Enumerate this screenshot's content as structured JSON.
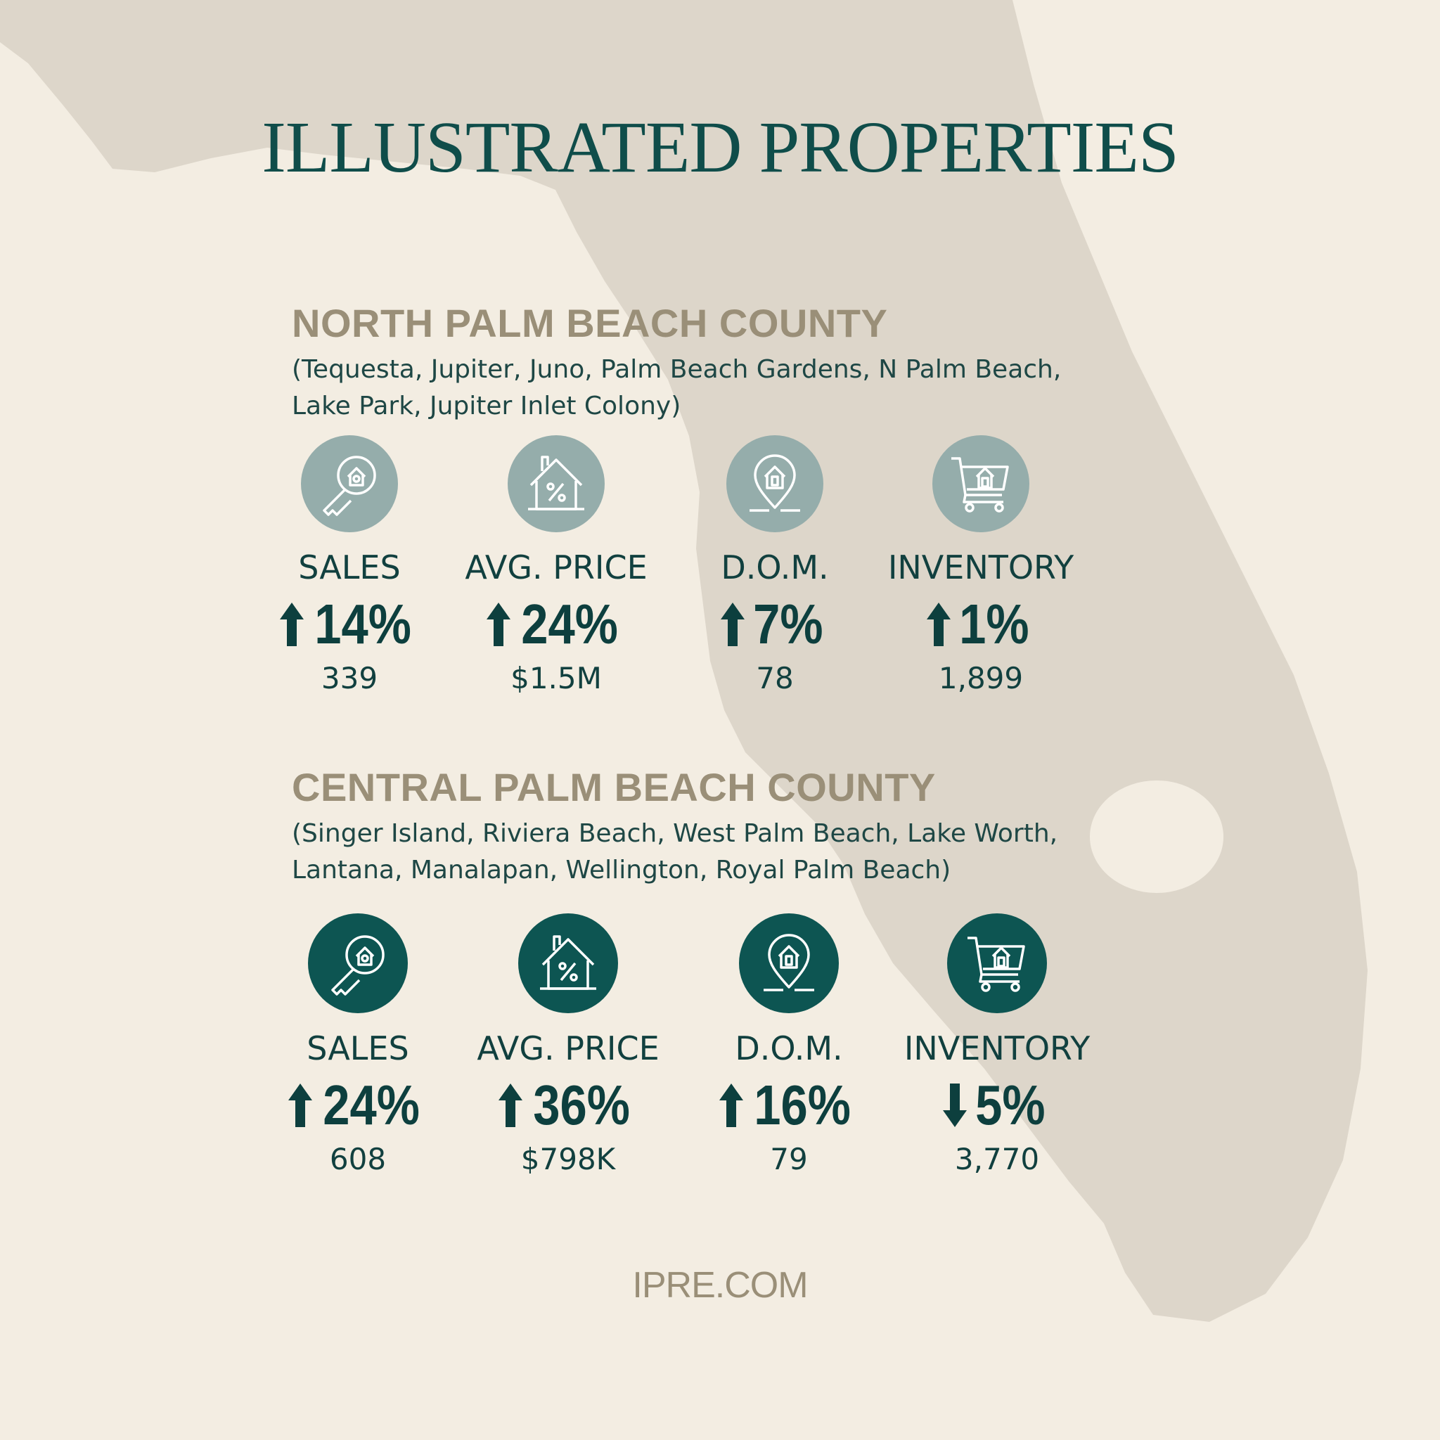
{
  "title": "ILLUSTRATED PROPERTIES",
  "colors": {
    "background": "#f3ede2",
    "map": "#ddd6ca",
    "title": "#0f4d4a",
    "heading": "#9a8f78",
    "north_icon_bg": "#95adab",
    "central_icon_bg": "#0d5552",
    "text": "#11403f"
  },
  "regions": [
    {
      "heading": "NORTH PALM BEACH COUNTY",
      "towns_line1": "(Tequesta, Jupiter, Juno, Palm Beach Gardens, N Palm Beach,",
      "towns_line2": "Lake Park, Jupiter Inlet Colony)",
      "stats": [
        {
          "icon": "key-house-icon",
          "label": "SALES",
          "direction": "up",
          "change": "14%",
          "value": "339"
        },
        {
          "icon": "house-percent-icon",
          "label": "AVG. PRICE",
          "direction": "up",
          "change": "24%",
          "value": "$1.5M"
        },
        {
          "icon": "location-pin-house-icon",
          "label": "D.O.M.",
          "direction": "up",
          "change": "7%",
          "value": "78"
        },
        {
          "icon": "shopping-cart-house-icon",
          "label": "INVENTORY",
          "direction": "up",
          "change": "1%",
          "value": "1,899"
        }
      ]
    },
    {
      "heading": "CENTRAL PALM BEACH COUNTY",
      "towns_line1": "(Singer Island, Riviera Beach, West Palm Beach, Lake Worth,",
      "towns_line2": "Lantana, Manalapan, Wellington, Royal Palm Beach)",
      "stats": [
        {
          "icon": "key-house-icon",
          "label": "SALES",
          "direction": "up",
          "change": "24%",
          "value": "608"
        },
        {
          "icon": "house-percent-icon",
          "label": "AVG. PRICE",
          "direction": "up",
          "change": "36%",
          "value": "$798K"
        },
        {
          "icon": "location-pin-house-icon",
          "label": "D.O.M.",
          "direction": "up",
          "change": "16%",
          "value": "79"
        },
        {
          "icon": "shopping-cart-house-icon",
          "label": "INVENTORY",
          "direction": "down",
          "change": "5%",
          "value": "3,770"
        }
      ]
    }
  ],
  "footer": "IPRE.COM"
}
